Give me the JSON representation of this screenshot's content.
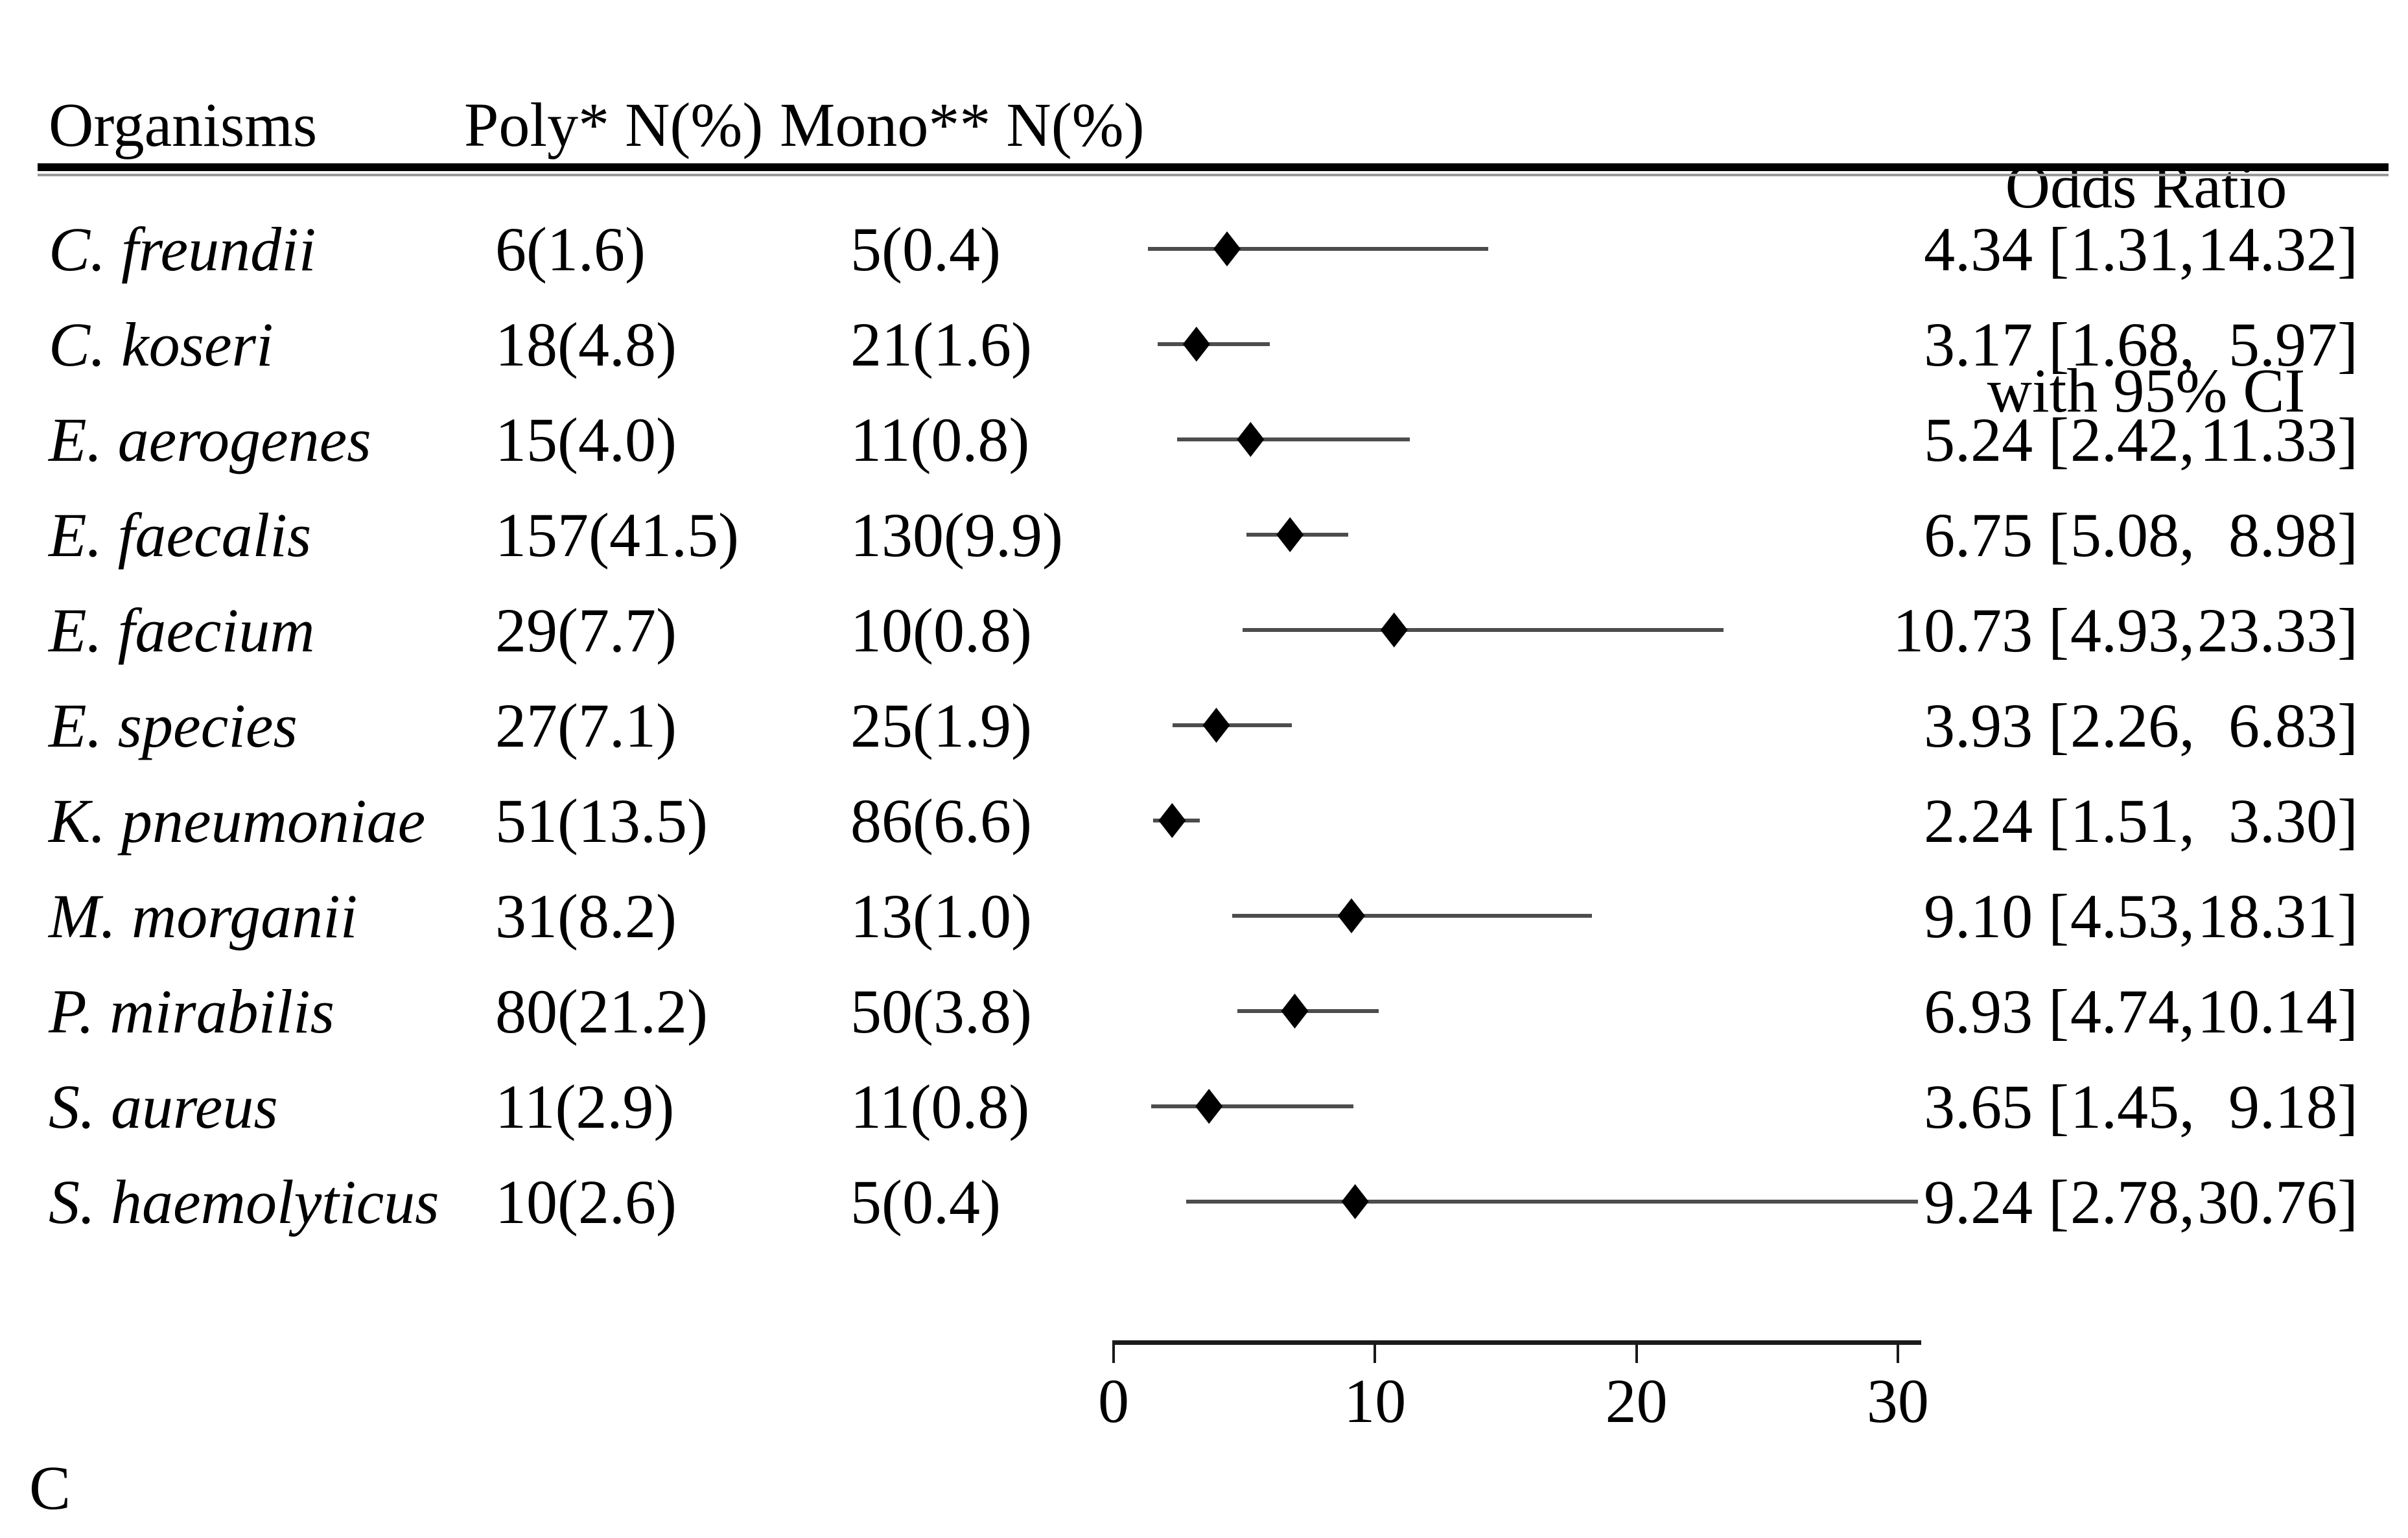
{
  "figure": {
    "panel_label": "C",
    "accent_colors": {
      "text": "#000000",
      "ci_line": "#4d4d4d",
      "diamond": "#000000",
      "axis": "#1a1a1a",
      "header_rule_black": "#000000",
      "header_rule_gray": "#9a9a9a"
    },
    "columns": {
      "organisms": "Organisms",
      "poly": "Poly* N(%)",
      "mono": "Mono** N(%)",
      "or_header_line1": "Odds Ratio",
      "or_header_line2": "with 95% CI"
    }
  },
  "chart_data": {
    "type": "forest",
    "title": "Odds Ratio with 95% CI",
    "xlabel": "",
    "ylabel": "",
    "xlim": [
      0,
      30.8
    ],
    "x_ticks": [
      0,
      10,
      20,
      30
    ],
    "grid": false,
    "legend_position": "none",
    "rows": [
      {
        "organism": "C. freundii",
        "poly": "6(1.6)",
        "mono": "5(0.4)",
        "or": 4.34,
        "ci_low": 1.31,
        "ci_high": 14.32
      },
      {
        "organism": "C. koseri",
        "poly": "18(4.8)",
        "mono": "21(1.6)",
        "or": 3.17,
        "ci_low": 1.68,
        "ci_high": 5.97
      },
      {
        "organism": "E. aerogenes",
        "poly": "15(4.0)",
        "mono": "11(0.8)",
        "or": 5.24,
        "ci_low": 2.42,
        "ci_high": 11.33
      },
      {
        "organism": "E. faecalis",
        "poly": "157(41.5)",
        "mono": "130(9.9)",
        "or": 6.75,
        "ci_low": 5.08,
        "ci_high": 8.98
      },
      {
        "organism": "E. faecium",
        "poly": "29(7.7)",
        "mono": "10(0.8)",
        "or": 10.73,
        "ci_low": 4.93,
        "ci_high": 23.33
      },
      {
        "organism": "E. species",
        "poly": "27(7.1)",
        "mono": "25(1.9)",
        "or": 3.93,
        "ci_low": 2.26,
        "ci_high": 6.83
      },
      {
        "organism": "K. pneumoniae",
        "poly": "51(13.5)",
        "mono": "86(6.6)",
        "or": 2.24,
        "ci_low": 1.51,
        "ci_high": 3.3
      },
      {
        "organism": "M. morganii",
        "poly": "31(8.2)",
        "mono": "13(1.0)",
        "or": 9.1,
        "ci_low": 4.53,
        "ci_high": 18.31
      },
      {
        "organism": "P. mirabilis",
        "poly": "80(21.2)",
        "mono": "50(3.8)",
        "or": 6.93,
        "ci_low": 4.74,
        "ci_high": 10.14
      },
      {
        "organism": "S. aureus",
        "poly": "11(2.9)",
        "mono": "11(0.8)",
        "or": 3.65,
        "ci_low": 1.45,
        "ci_high": 9.18
      },
      {
        "organism": "S. haemolyticus",
        "poly": "10(2.6)",
        "mono": "5(0.4)",
        "or": 9.24,
        "ci_low": 2.78,
        "ci_high": 30.76
      }
    ]
  }
}
